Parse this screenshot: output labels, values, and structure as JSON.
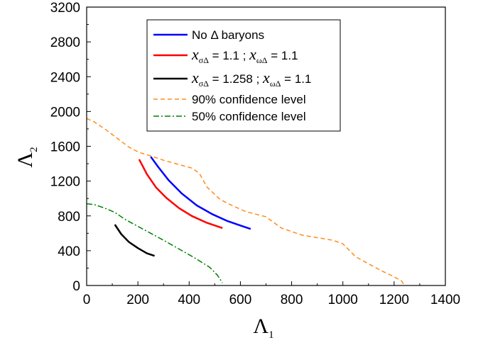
{
  "chart_data": {
    "type": "line",
    "xlabel": {
      "symbol": "Λ",
      "sub": "1"
    },
    "ylabel": {
      "symbol": "Λ",
      "sub": "2"
    },
    "xlim": [
      0,
      1400
    ],
    "ylim": [
      0,
      3200
    ],
    "xticks": [
      "0",
      "200",
      "400",
      "600",
      "800",
      "1000",
      "1200",
      "1400"
    ],
    "yticks": [
      "0",
      "400",
      "800",
      "1200",
      "1600",
      "2000",
      "2400",
      "2800",
      "3200"
    ],
    "grid": false,
    "legend_position": "top-center",
    "series": [
      {
        "legend": {
          "prefix": "No Δ baryons"
        },
        "color": "#0000ff",
        "style": "solid",
        "x": [
          250,
          280,
          320,
          370,
          430,
          490,
          550,
          600,
          640
        ],
        "y": [
          1480,
          1360,
          1210,
          1060,
          920,
          820,
          740,
          690,
          650
        ]
      },
      {
        "legend": {
          "prefix": "",
          "v1": "1.1",
          "v2": "1.1"
        },
        "color": "#ff0000",
        "style": "solid",
        "x": [
          205,
          235,
          270,
          310,
          360,
          410,
          470,
          530
        ],
        "y": [
          1450,
          1280,
          1130,
          1010,
          890,
          800,
          720,
          660
        ]
      },
      {
        "legend": {
          "prefix": "",
          "v1": "1.258",
          "v2": "1.1"
        },
        "color": "#000000",
        "style": "solid",
        "x": [
          110,
          135,
          165,
          200,
          235,
          265
        ],
        "y": [
          700,
          590,
          500,
          430,
          370,
          340
        ]
      },
      {
        "legend": {
          "prefix": "90% confidence level"
        },
        "color": "#ff8c1a",
        "style": "dashed",
        "x": [
          0,
          30,
          75,
          120,
          165,
          205,
          250,
          300,
          360,
          410,
          440,
          470,
          520,
          560,
          620,
          700,
          760,
          840,
          900,
          960,
          1000,
          1050,
          1100,
          1150,
          1200,
          1230,
          1240
        ],
        "y": [
          1920,
          1880,
          1790,
          1690,
          1590,
          1530,
          1490,
          1440,
          1390,
          1350,
          1290,
          1130,
          990,
          930,
          850,
          790,
          660,
          580,
          550,
          520,
          480,
          330,
          250,
          170,
          100,
          50,
          0
        ]
      },
      {
        "legend": {
          "prefix": "50% confidence level"
        },
        "color": "#008000",
        "style": "dashdot",
        "x": [
          0,
          30,
          70,
          110,
          150,
          200,
          250,
          300,
          360,
          420,
          480,
          510,
          530
        ],
        "y": [
          940,
          930,
          890,
          840,
          760,
          680,
          600,
          520,
          420,
          320,
          210,
          120,
          30
        ]
      }
    ]
  }
}
